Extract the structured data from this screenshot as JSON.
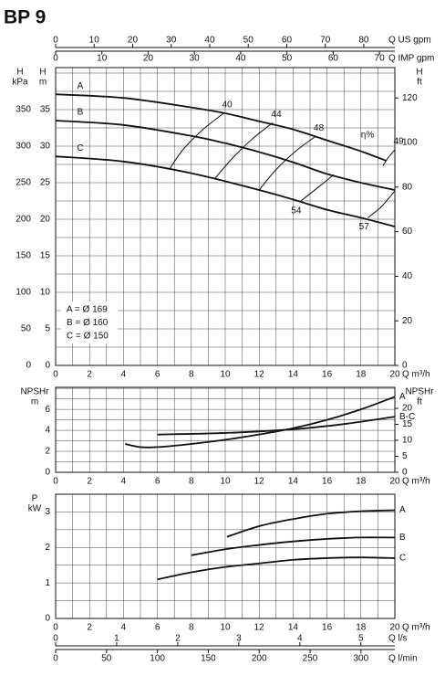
{
  "header": {
    "title": "BP 9"
  },
  "flow_axes": [
    {
      "label": "Q US gpm",
      "lim": [
        0,
        88.06
      ],
      "ticks": [
        0,
        10,
        20,
        30,
        40,
        50,
        60,
        70,
        80
      ]
    },
    {
      "label": "Q IMP gpm",
      "lim": [
        0,
        73.33
      ],
      "ticks": [
        0,
        10,
        20,
        30,
        40,
        50,
        60,
        70
      ]
    },
    {
      "label": "Q l/s",
      "lim": [
        0,
        5.556
      ],
      "ticks": [
        0,
        1,
        2,
        3,
        4,
        5
      ]
    },
    {
      "label": "Q l/min",
      "lim": [
        0,
        333.3
      ],
      "ticks": [
        0,
        50,
        100,
        150,
        200,
        250,
        300
      ]
    }
  ],
  "chart_data": [
    {
      "type": "line",
      "xlabel": "Q m³/h",
      "xlim": [
        0,
        20
      ],
      "xticks": [
        0,
        2,
        4,
        6,
        8,
        10,
        12,
        14,
        16,
        18,
        20
      ],
      "ylabel": "H",
      "yunit": "m",
      "ylim": [
        0,
        40.75
      ],
      "yticks": [
        0,
        5,
        10,
        15,
        20,
        25,
        30,
        35
      ],
      "y3label": "H",
      "y3unit": "kPa",
      "y3lim": [
        0,
        407.5
      ],
      "y3ticks": [
        0,
        50,
        100,
        150,
        200,
        250,
        300,
        350
      ],
      "y2label": "H",
      "y2unit": "ft",
      "y2lim": [
        0,
        133.6
      ],
      "y2ticks": [
        0,
        20,
        40,
        60,
        80,
        100,
        120
      ],
      "grid": true,
      "series": [
        {
          "name": "A",
          "color": "#111111",
          "x": [
            0,
            4,
            8,
            10,
            12,
            14,
            16,
            18,
            19.5
          ],
          "values": [
            37.1,
            36.6,
            35.3,
            34.5,
            33.4,
            32.3,
            30.8,
            29.3,
            28.0
          ]
        },
        {
          "name": "B",
          "color": "#111111",
          "x": [
            0,
            4,
            8,
            10,
            12,
            14,
            16,
            18,
            20
          ],
          "values": [
            33.5,
            32.9,
            31.4,
            30.4,
            29.2,
            27.8,
            26.2,
            25.0,
            24.0
          ]
        },
        {
          "name": "C",
          "color": "#111111",
          "x": [
            0,
            4,
            8,
            12,
            14,
            16,
            18,
            20
          ],
          "values": [
            28.6,
            27.9,
            26.3,
            24.0,
            22.7,
            21.3,
            20.2,
            19.0
          ]
        }
      ],
      "efficiency_label": "η%",
      "efficiency": [
        {
          "label": "40",
          "x": [
            6.7,
            7.5,
            8.6,
            9.9
          ],
          "values": [
            26.8,
            29.5,
            32.1,
            34.5
          ]
        },
        {
          "label": "44",
          "x": [
            9.4,
            10.4,
            11.6,
            12.8
          ],
          "values": [
            25.6,
            28.3,
            31.0,
            33.2
          ]
        },
        {
          "label": "48",
          "x": [
            12,
            13,
            14.2,
            15.3
          ],
          "values": [
            24.0,
            26.8,
            29.4,
            31.3
          ]
        },
        {
          "label": "49",
          "x": [
            19.3,
            19.6,
            20
          ],
          "values": [
            27.3,
            28.4,
            29.5
          ]
        },
        {
          "label": "54",
          "x": [
            16.4,
            15.5,
            14.4
          ],
          "values": [
            26.1,
            24.4,
            22.4
          ]
        },
        {
          "label": "57",
          "x": [
            20,
            19.2,
            18.4
          ],
          "values": [
            23.9,
            21.7,
            20.2
          ]
        }
      ],
      "annotations": [
        "A = Ø 169",
        "B = Ø 160",
        "C = Ø 150"
      ]
    },
    {
      "type": "line",
      "xlabel": "Q m³/h",
      "xlim": [
        0,
        20
      ],
      "xticks": [
        0,
        2,
        4,
        6,
        8,
        10,
        12,
        14,
        16,
        18,
        20
      ],
      "ylabel": "NPSHr",
      "yunit": "m",
      "ylim": [
        0,
        8.1
      ],
      "yticks": [
        0,
        2,
        4,
        6
      ],
      "y2label": "NPSHr",
      "y2unit": "ft",
      "y2lim": [
        0,
        26.6
      ],
      "y2ticks": [
        0,
        5,
        10,
        15,
        20
      ],
      "grid": true,
      "series": [
        {
          "name": "A",
          "color": "#111111",
          "x": [
            4.1,
            5,
            6,
            8,
            10,
            12,
            14,
            16,
            18,
            20
          ],
          "values": [
            2.7,
            2.4,
            2.4,
            2.7,
            3.1,
            3.6,
            4.2,
            5.0,
            6.0,
            7.2
          ]
        },
        {
          "name": "B-C",
          "color": "#111111",
          "x": [
            6,
            10,
            14,
            17,
            20
          ],
          "values": [
            3.6,
            3.75,
            4.1,
            4.6,
            5.3
          ]
        }
      ]
    },
    {
      "type": "line",
      "xlabel": "Q m³/h",
      "xlim": [
        0,
        20
      ],
      "xticks": [
        0,
        2,
        4,
        6,
        8,
        10,
        12,
        14,
        16,
        18,
        20
      ],
      "ylabel": "P",
      "yunit": "kW",
      "ylim": [
        0,
        3.5
      ],
      "yticks": [
        0,
        1,
        2,
        3
      ],
      "grid": true,
      "series": [
        {
          "name": "A",
          "color": "#111111",
          "x": [
            10.1,
            12,
            14,
            16,
            18,
            20
          ],
          "values": [
            2.3,
            2.6,
            2.8,
            2.95,
            3.02,
            3.05
          ]
        },
        {
          "name": "B",
          "color": "#111111",
          "x": [
            8,
            10,
            12,
            14,
            16,
            18,
            20
          ],
          "values": [
            1.78,
            1.95,
            2.07,
            2.17,
            2.24,
            2.28,
            2.28
          ]
        },
        {
          "name": "C",
          "color": "#111111",
          "x": [
            6,
            8,
            10,
            12,
            14,
            16,
            18,
            20
          ],
          "values": [
            1.1,
            1.3,
            1.45,
            1.55,
            1.65,
            1.7,
            1.72,
            1.7
          ]
        }
      ]
    }
  ]
}
